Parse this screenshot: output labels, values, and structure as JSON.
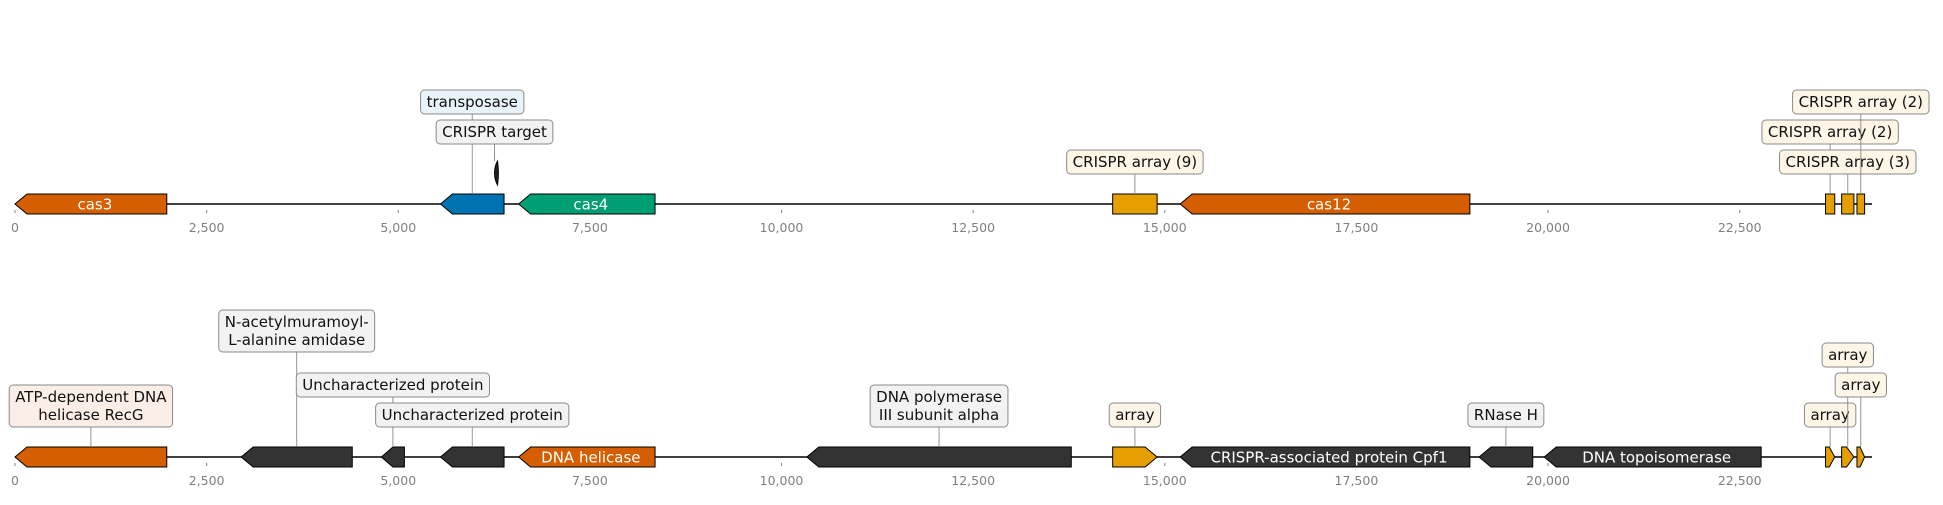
{
  "colors": {
    "cas3": "#d55e00",
    "transposase": "#0072b2",
    "cas4": "#009e73",
    "crispr_array": "#e69f00",
    "cas12": "#d55e00",
    "crispr_target": "#222222",
    "unannotated": "#333333",
    "backbone": "#000000",
    "axis_text": "#808080"
  },
  "axis": {
    "min": 0,
    "max": 24200,
    "tick_values": [
      0,
      2500,
      5000,
      7500,
      10000,
      12500,
      15000,
      17500,
      20000,
      22500
    ],
    "tick_labels": [
      "0",
      "2,500",
      "5,000",
      "7,500",
      "10,000",
      "12,500",
      "15,000",
      "17,500",
      "20,000",
      "22,500"
    ]
  },
  "tracks": [
    {
      "id": "track-1",
      "features": [
        {
          "id": "cas3",
          "start": 0,
          "end": 1980,
          "strand": -1,
          "color_key": "cas3",
          "inner_label": "cas3"
        },
        {
          "id": "transposase",
          "start": 5550,
          "end": 6380,
          "strand": -1,
          "color_key": "transposase",
          "label_lines": [
            "transposase"
          ],
          "label_bg": "#e9f3fa",
          "label_level": 3
        },
        {
          "id": "crispr-target",
          "start": 6270,
          "end": 6320,
          "strand": -1,
          "color_key": "crispr_target",
          "kind": "sliver",
          "label_lines": [
            "CRISPR target"
          ],
          "label_bg": "#f2f2f2",
          "label_level": 2
        },
        {
          "id": "cas4",
          "start": 6570,
          "end": 8350,
          "strand": -1,
          "color_key": "cas4",
          "inner_label": "cas4"
        },
        {
          "id": "crispr-array-9",
          "start": 14320,
          "end": 14900,
          "strand": 0,
          "color_key": "crispr_array",
          "label_lines": [
            "CRISPR array (9)"
          ],
          "label_bg": "#fdf6e7",
          "label_level": 1
        },
        {
          "id": "cas12",
          "start": 15200,
          "end": 18980,
          "strand": -1,
          "color_key": "cas12",
          "inner_label": "cas12"
        },
        {
          "id": "crispr-array-2a",
          "start": 23620,
          "end": 23740,
          "strand": 0,
          "color_key": "crispr_array",
          "label_lines": [
            "CRISPR array (2)"
          ],
          "label_bg": "#fdf6e7",
          "label_level": 2
        },
        {
          "id": "crispr-array-3",
          "start": 23830,
          "end": 23990,
          "strand": 0,
          "color_key": "crispr_array",
          "label_lines": [
            "CRISPR array (3)"
          ],
          "label_bg": "#fdf6e7",
          "label_level": 1
        },
        {
          "id": "crispr-array-2b",
          "start": 24030,
          "end": 24130,
          "strand": 0,
          "color_key": "crispr_array",
          "label_lines": [
            "CRISPR array (2)"
          ],
          "label_bg": "#fdf6e7",
          "label_level": 3
        }
      ]
    },
    {
      "id": "track-2",
      "features": [
        {
          "id": "recg",
          "start": 0,
          "end": 1980,
          "strand": -1,
          "color_key": "cas3",
          "label_lines": [
            "ATP-dependent DNA",
            "helicase RecG"
          ],
          "label_bg": "#fbeee6",
          "label_level": 1
        },
        {
          "id": "amidase",
          "start": 2950,
          "end": 4400,
          "strand": -1,
          "color_key": "unannotated",
          "label_lines": [
            "N-acetylmuramoyl-",
            "L-alanine amidase"
          ],
          "label_bg": "#f2f2f2",
          "label_level": 3
        },
        {
          "id": "uncharacterized-1",
          "start": 4780,
          "end": 5080,
          "strand": -1,
          "color_key": "unannotated",
          "label_lines": [
            "Uncharacterized protein"
          ],
          "label_bg": "#f2f2f2",
          "label_level": 2
        },
        {
          "id": "uncharacterized-2",
          "start": 5550,
          "end": 6380,
          "strand": -1,
          "color_key": "unannotated",
          "label_lines": [
            "Uncharacterized protein"
          ],
          "label_bg": "#f2f2f2",
          "label_level": 1
        },
        {
          "id": "dna-helicase",
          "start": 6570,
          "end": 8350,
          "strand": -1,
          "color_key": "cas4_alt",
          "inner_label": "DNA helicase"
        },
        {
          "id": "dna-polymerase",
          "start": 10330,
          "end": 13780,
          "strand": -1,
          "color_key": "unannotated",
          "label_lines": [
            "DNA polymerase",
            "III subunit alpha"
          ],
          "label_bg": "#f2f2f2",
          "label_level": 1
        },
        {
          "id": "array-1",
          "start": 14320,
          "end": 14900,
          "strand": 1,
          "color_key": "crispr_array",
          "label_lines": [
            "array"
          ],
          "label_bg": "#fdf6e7",
          "label_level": 1
        },
        {
          "id": "cpf1",
          "start": 15200,
          "end": 18980,
          "strand": -1,
          "color_key": "unannotated",
          "inner_label": "CRISPR-associated protein Cpf1"
        },
        {
          "id": "rnase-h",
          "start": 19100,
          "end": 19800,
          "strand": -1,
          "color_key": "unannotated",
          "label_lines": [
            "RNase H"
          ],
          "label_bg": "#f2f2f2",
          "label_level": 1
        },
        {
          "id": "topoisomerase",
          "start": 19950,
          "end": 22780,
          "strand": -1,
          "color_key": "unannotated",
          "inner_label": "DNA topoisomerase"
        },
        {
          "id": "array-2",
          "start": 23620,
          "end": 23740,
          "strand": 1,
          "color_key": "crispr_array",
          "label_lines": [
            "array"
          ],
          "label_bg": "#fdf6e7",
          "label_level": 1
        },
        {
          "id": "array-3",
          "start": 23830,
          "end": 23990,
          "strand": 1,
          "color_key": "crispr_array",
          "label_lines": [
            "array"
          ],
          "label_bg": "#fdf6e7",
          "label_level": 3
        },
        {
          "id": "array-4",
          "start": 24030,
          "end": 24130,
          "strand": 1,
          "color_key": "crispr_array",
          "label_lines": [
            "array"
          ],
          "label_bg": "#fdf6e7",
          "label_level": 2
        }
      ]
    }
  ]
}
